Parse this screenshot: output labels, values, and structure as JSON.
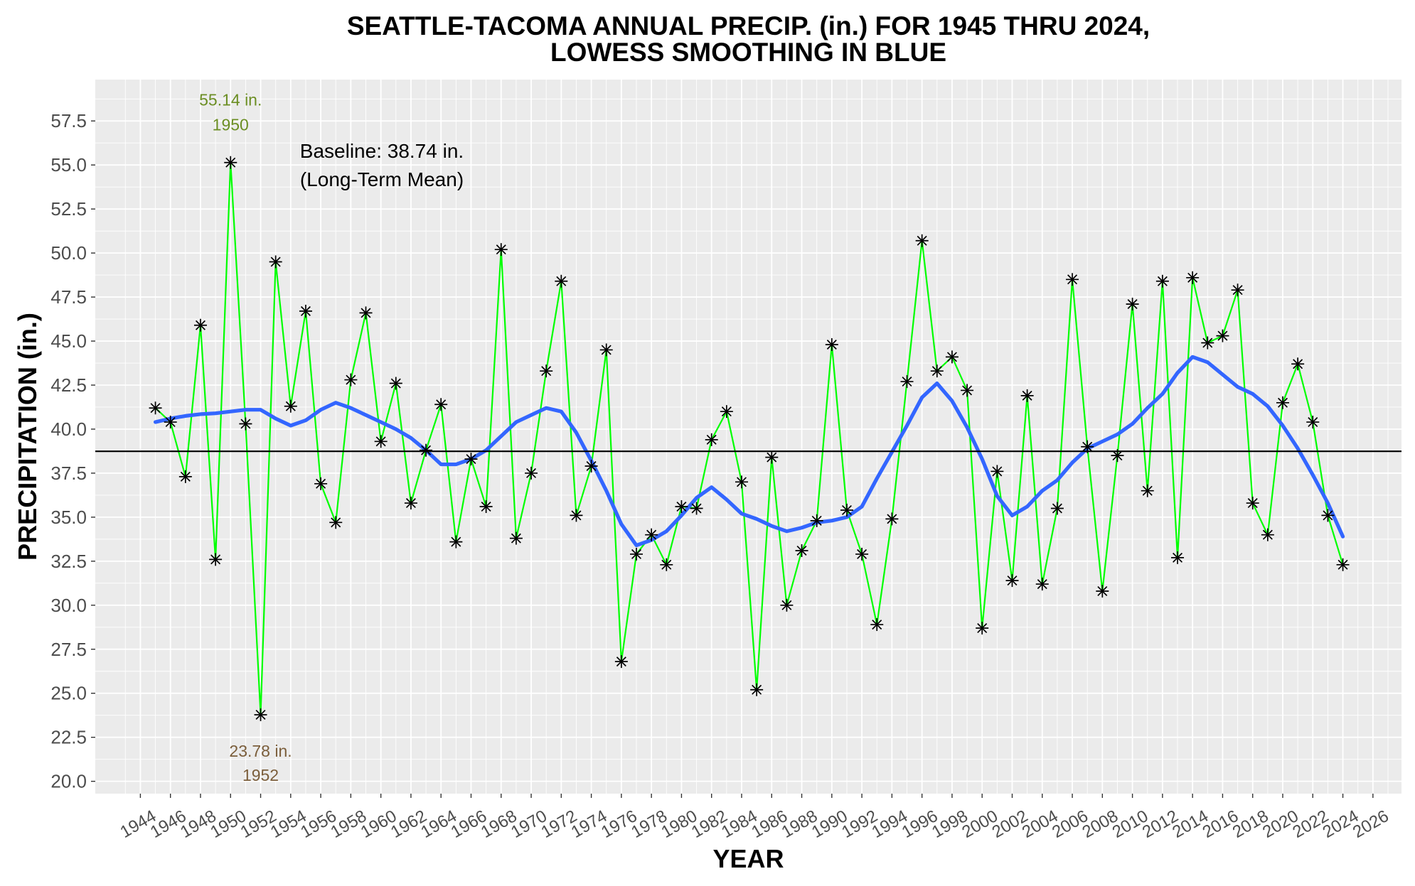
{
  "chart_data": {
    "type": "line",
    "title_lines": [
      "SEATTLE-TACOMA ANNUAL PRECIP. (in.) FOR 1945 THRU 2024,",
      "LOWESS SMOOTHING IN BLUE"
    ],
    "xlabel": "YEAR",
    "ylabel": "PRECIPITATION (in.)",
    "xlim": [
      1941.0,
      2027.9
    ],
    "ylim": [
      19.3,
      59.85
    ],
    "x_ticks": [
      "1944",
      "1946",
      "1948",
      "1950",
      "1952",
      "1954",
      "1956",
      "1958",
      "1960",
      "1962",
      "1964",
      "1966",
      "1968",
      "1970",
      "1972",
      "1974",
      "1976",
      "1978",
      "1980",
      "1982",
      "1984",
      "1986",
      "1988",
      "1990",
      "1992",
      "1994",
      "1996",
      "1998",
      "2000",
      "2002",
      "2004",
      "2006",
      "2008",
      "2010",
      "2012",
      "2014",
      "2016",
      "2018",
      "2020",
      "2022",
      "2024",
      "2026"
    ],
    "y_ticks": [
      "20.0",
      "22.5",
      "25.0",
      "27.5",
      "30.0",
      "32.5",
      "35.0",
      "37.5",
      "40.0",
      "42.5",
      "45.0",
      "47.5",
      "50.0",
      "52.5",
      "55.0",
      "57.5"
    ],
    "grid": true,
    "panel_background": "#EBEBEB",
    "x": [
      1945,
      1946,
      1947,
      1948,
      1949,
      1950,
      1951,
      1952,
      1953,
      1954,
      1955,
      1956,
      1957,
      1958,
      1959,
      1960,
      1961,
      1962,
      1963,
      1964,
      1965,
      1966,
      1967,
      1968,
      1969,
      1970,
      1971,
      1972,
      1973,
      1974,
      1975,
      1976,
      1977,
      1978,
      1979,
      1980,
      1981,
      1982,
      1983,
      1984,
      1985,
      1986,
      1987,
      1988,
      1989,
      1990,
      1991,
      1992,
      1993,
      1994,
      1995,
      1996,
      1997,
      1998,
      1999,
      2000,
      2001,
      2002,
      2003,
      2004,
      2005,
      2006,
      2007,
      2008,
      2009,
      2010,
      2011,
      2012,
      2013,
      2014,
      2015,
      2016,
      2017,
      2018,
      2019,
      2020,
      2021,
      2022,
      2023,
      2024
    ],
    "series": [
      {
        "values": [
          41.2,
          40.4,
          37.3,
          45.9,
          32.6,
          55.14,
          40.3,
          23.78,
          49.5,
          41.3,
          46.7,
          36.9,
          34.7,
          42.8,
          46.6,
          39.3,
          42.6,
          35.8,
          38.8,
          41.4,
          33.6,
          38.3,
          35.6,
          50.2,
          33.8,
          37.5,
          43.3,
          48.4,
          35.1,
          37.9,
          44.5,
          26.8,
          32.9,
          34.0,
          32.3,
          35.6,
          35.5,
          39.4,
          41.0,
          37.0,
          25.2,
          38.4,
          30.0,
          33.1,
          34.8,
          44.8,
          35.4,
          32.9,
          28.9,
          34.9,
          42.7,
          50.7,
          43.3,
          44.1,
          42.2,
          28.7,
          37.6,
          31.4,
          41.9,
          31.2,
          35.5,
          48.5,
          39.0,
          30.8,
          38.5,
          47.1,
          36.5,
          48.4,
          32.7,
          48.6,
          44.9,
          45.3,
          47.9,
          35.8,
          34.0,
          41.5,
          43.7,
          40.4,
          35.1,
          32.3
        ],
        "color": "#00FF00",
        "marker": "asterisk",
        "marker_color": "#000000"
      },
      {
        "values": [
          40.4,
          40.6,
          40.75,
          40.85,
          40.9,
          41.0,
          41.1,
          41.1,
          40.6,
          40.2,
          40.5,
          41.1,
          41.5,
          41.2,
          40.8,
          40.4,
          40.0,
          39.5,
          38.8,
          38.0,
          38.0,
          38.3,
          38.8,
          39.6,
          40.4,
          40.8,
          41.2,
          41.0,
          39.8,
          38.2,
          36.5,
          34.6,
          33.4,
          33.7,
          34.2,
          35.1,
          36.1,
          36.7,
          36.0,
          35.2,
          34.9,
          34.5,
          34.2,
          34.4,
          34.7,
          34.8,
          35.0,
          35.6,
          37.2,
          38.7,
          40.2,
          41.8,
          42.6,
          41.6,
          40.1,
          38.3,
          36.2,
          35.1,
          35.6,
          36.5,
          37.1,
          38.1,
          38.9,
          39.3,
          39.7,
          40.3,
          41.2,
          42.0,
          43.2,
          44.1,
          43.8,
          43.1,
          42.4,
          42.0,
          41.3,
          40.2,
          38.9,
          37.4,
          35.8,
          33.9
        ],
        "color": "#3366FF"
      }
    ],
    "reference_line": {
      "y": 38.74,
      "color": "#000000"
    },
    "annotations": [
      {
        "lines": [
          "55.14 in.",
          "1950"
        ],
        "color": "#6B8E23"
      },
      {
        "lines": [
          "23.78 in.",
          "1952"
        ],
        "color": "#7B5E3B"
      },
      {
        "lines": [
          "Baseline: 38.74 in.",
          "(Long-Term Mean)"
        ],
        "color": "#000000"
      }
    ]
  }
}
